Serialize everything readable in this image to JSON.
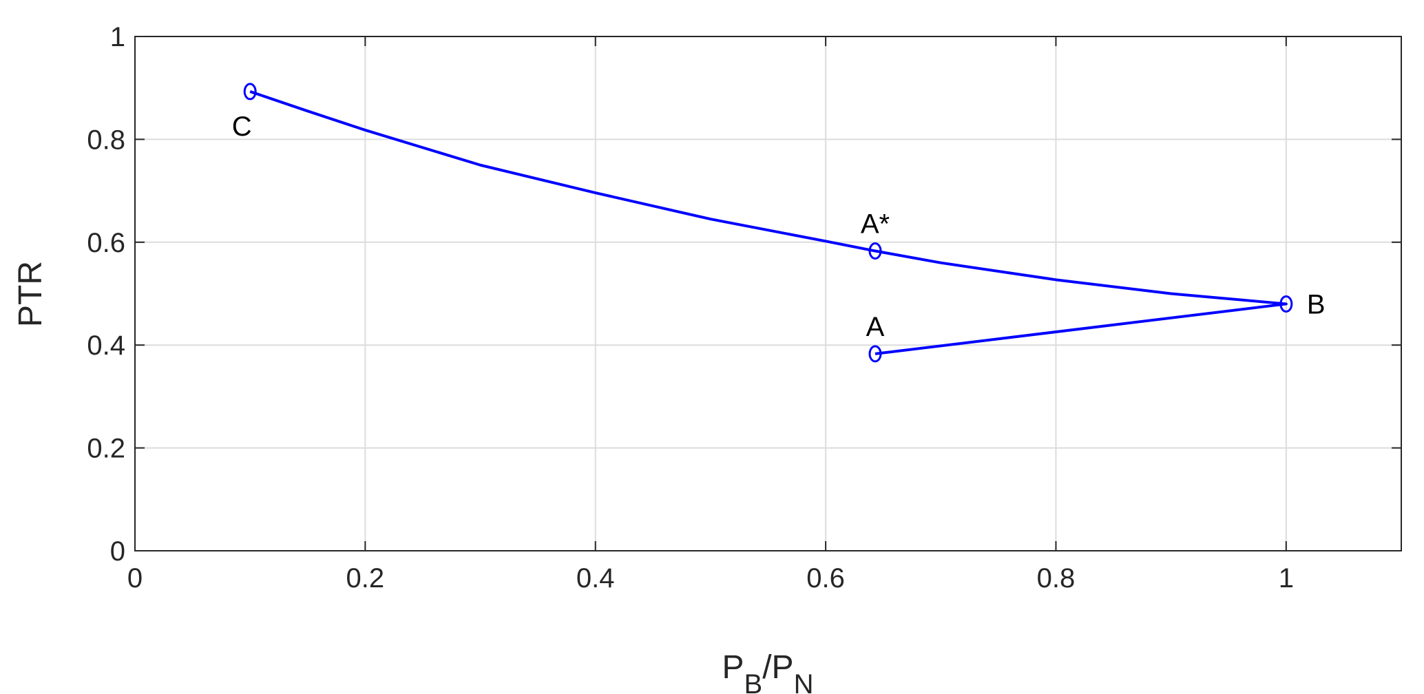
{
  "chart_data": {
    "type": "line",
    "xlabel": [
      {
        "text": "P"
      },
      {
        "text": "B",
        "sub": true
      },
      {
        "text": "/P"
      },
      {
        "text": "N",
        "sub": true
      }
    ],
    "ylabel": "PTR",
    "xlim": [
      0,
      1.1
    ],
    "ylim": [
      0,
      1
    ],
    "xticks": [
      0,
      0.2,
      0.4,
      0.6,
      0.8,
      1
    ],
    "yticks": [
      0,
      0.2,
      0.4,
      0.6,
      0.8,
      1
    ],
    "grid": true,
    "series": [
      {
        "color": "#0000ff",
        "x": [
          0.643,
          1.0,
          0.9,
          0.8,
          0.7,
          0.643,
          0.6,
          0.5,
          0.4,
          0.3,
          0.2,
          0.15,
          0.1
        ],
        "values": [
          0.383,
          0.48,
          0.5,
          0.527,
          0.56,
          0.583,
          0.602,
          0.645,
          0.696,
          0.75,
          0.818,
          0.855,
          0.893
        ]
      },
      {
        "color": "#0000ff",
        "marker": "o",
        "x": [
          0.643,
          1.0,
          0.643,
          0.1
        ],
        "values": [
          0.383,
          0.48,
          0.583,
          0.893
        ],
        "labels": [
          "A",
          "B",
          "A*",
          "C"
        ]
      }
    ]
  }
}
